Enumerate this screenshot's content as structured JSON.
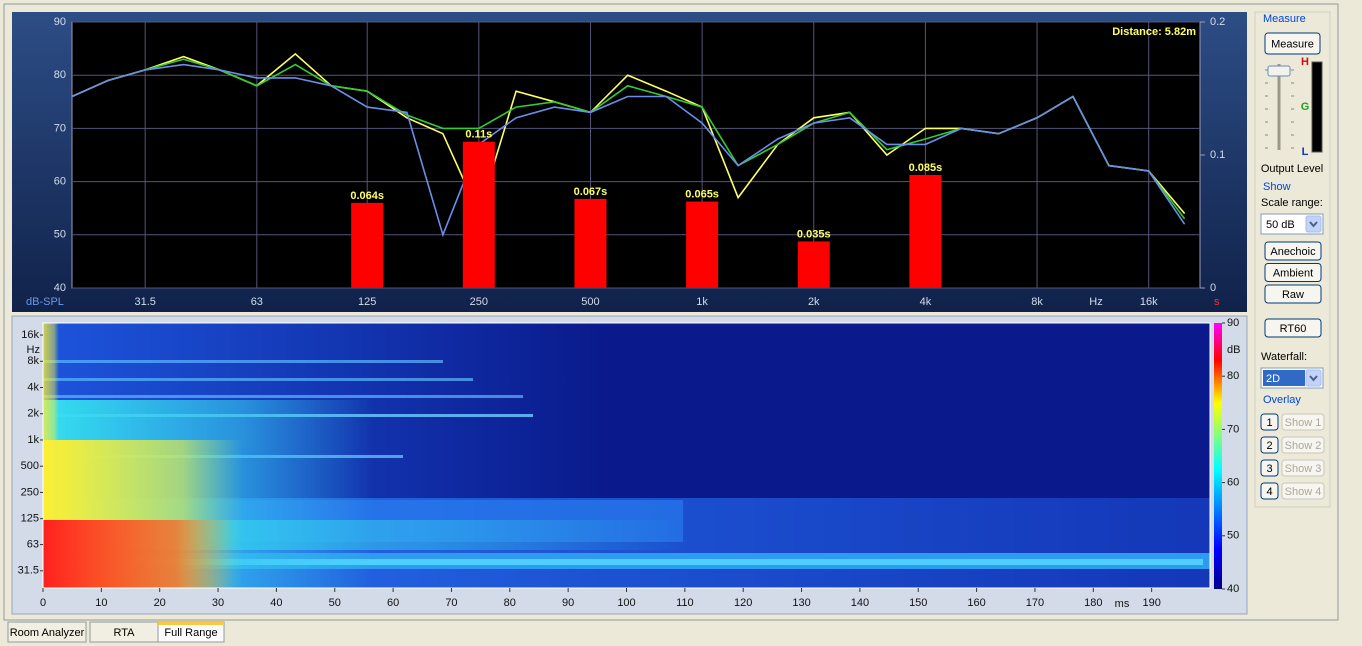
{
  "chart_data": [
    {
      "type": "line",
      "annotation": "Distance: 5.82m",
      "ylabel": "dB-SPL",
      "xlabel": "Hz",
      "y2label": "s",
      "log_x": true,
      "xlim": [
        20,
        22000
      ],
      "xticks": [
        31.5,
        63,
        125,
        250,
        500,
        {
          "value": 1000,
          "label": "1k"
        },
        {
          "value": 2000,
          "label": "2k"
        },
        {
          "value": 4000,
          "label": "4k"
        },
        {
          "value": 8000,
          "label": "8k"
        },
        {
          "value": 16000,
          "label": "16k"
        }
      ],
      "ylim": [
        40,
        90
      ],
      "yticks": [
        40,
        50,
        60,
        70,
        80,
        90
      ],
      "y2lim": [
        0,
        0.2
      ],
      "y2ticks": [
        0,
        0.1,
        0.2
      ],
      "grid": true,
      "x": [
        20,
        25,
        31.5,
        40,
        50,
        63,
        80,
        100,
        125,
        160,
        200,
        250,
        315,
        400,
        500,
        630,
        800,
        1000,
        1250,
        1600,
        2000,
        2500,
        3150,
        4000,
        5000,
        6300,
        8000,
        10000,
        12500,
        16000,
        20000
      ],
      "series": [
        {
          "color": "#ffff66",
          "values": [
            76,
            79,
            81,
            83.5,
            81,
            78,
            84,
            78,
            77,
            72,
            69,
            54,
            77,
            75,
            73,
            80,
            77,
            74,
            57,
            67,
            72,
            73,
            65,
            70,
            70,
            69,
            72,
            76,
            63,
            62,
            54
          ]
        },
        {
          "color": "#33cc33",
          "values": [
            76,
            79,
            81,
            83,
            81,
            78,
            82,
            78,
            77,
            72.5,
            70,
            70,
            74,
            75,
            73,
            78,
            76,
            74,
            63,
            67,
            71,
            73,
            66,
            68,
            70,
            69,
            72,
            76,
            63,
            62,
            53
          ]
        },
        {
          "color": "#6b8fe8",
          "values": [
            76,
            79,
            81,
            82,
            81,
            79.5,
            79.5,
            78,
            74,
            73,
            50,
            67,
            72,
            74,
            73,
            76,
            76,
            71,
            63,
            68,
            71,
            72,
            67,
            67,
            70,
            69,
            72,
            76,
            63,
            62,
            52
          ]
        }
      ]
    },
    {
      "type": "bar",
      "axis": "y2",
      "color": "#ff0000",
      "x": [
        125,
        250,
        500,
        1000,
        2000,
        4000
      ],
      "values": [
        0.064,
        0.11,
        0.067,
        0.065,
        0.035,
        0.085
      ],
      "value_labels": [
        "0.064s",
        "0.11s",
        "0.067s",
        "0.065s",
        "0.035s",
        "0.085s"
      ]
    },
    {
      "type": "heatmap",
      "xlabel": "ms",
      "ylabel": "Hz",
      "colorbar_label": "dB",
      "xlim": [
        0,
        200
      ],
      "xticks": [
        0,
        10,
        20,
        30,
        40,
        50,
        60,
        70,
        80,
        90,
        100,
        110,
        120,
        130,
        140,
        150,
        160,
        170,
        180,
        190
      ],
      "log_y": true,
      "ylim": [
        20,
        22000
      ],
      "yticks": [
        31.5,
        63,
        125,
        250,
        500,
        {
          "value": 1000,
          "label": "1k"
        },
        {
          "value": 2000,
          "label": "2k"
        },
        {
          "value": 4000,
          "label": "4k"
        },
        {
          "value": 8000,
          "label": "8k"
        },
        {
          "value": 16000,
          "label": "16k"
        }
      ],
      "colorbar_lim": [
        40,
        90
      ],
      "colorbar_ticks": [
        40,
        50,
        60,
        70,
        80,
        90
      ]
    }
  ],
  "panel": {
    "measure_group": "Measure",
    "measure_button": "Measure",
    "meter_labels": [
      "H",
      "G",
      "L"
    ],
    "output_level": "Output Level",
    "show_group": "Show",
    "scale_range_label": "Scale range:",
    "scale_range_value": "50 dB",
    "buttons": [
      "Anechoic",
      "Ambient",
      "Raw"
    ],
    "rt60_button": "RT60",
    "waterfall_label": "Waterfall:",
    "waterfall_value": "2D",
    "overlay_group": "Overlay",
    "overlay_numbers": [
      "1",
      "2",
      "3",
      "4"
    ],
    "overlay_shows": [
      "Show 1",
      "Show 2",
      "Show 3",
      "Show 4"
    ]
  },
  "tabs": [
    "Room Analyzer",
    "RTA",
    "Full Range"
  ]
}
